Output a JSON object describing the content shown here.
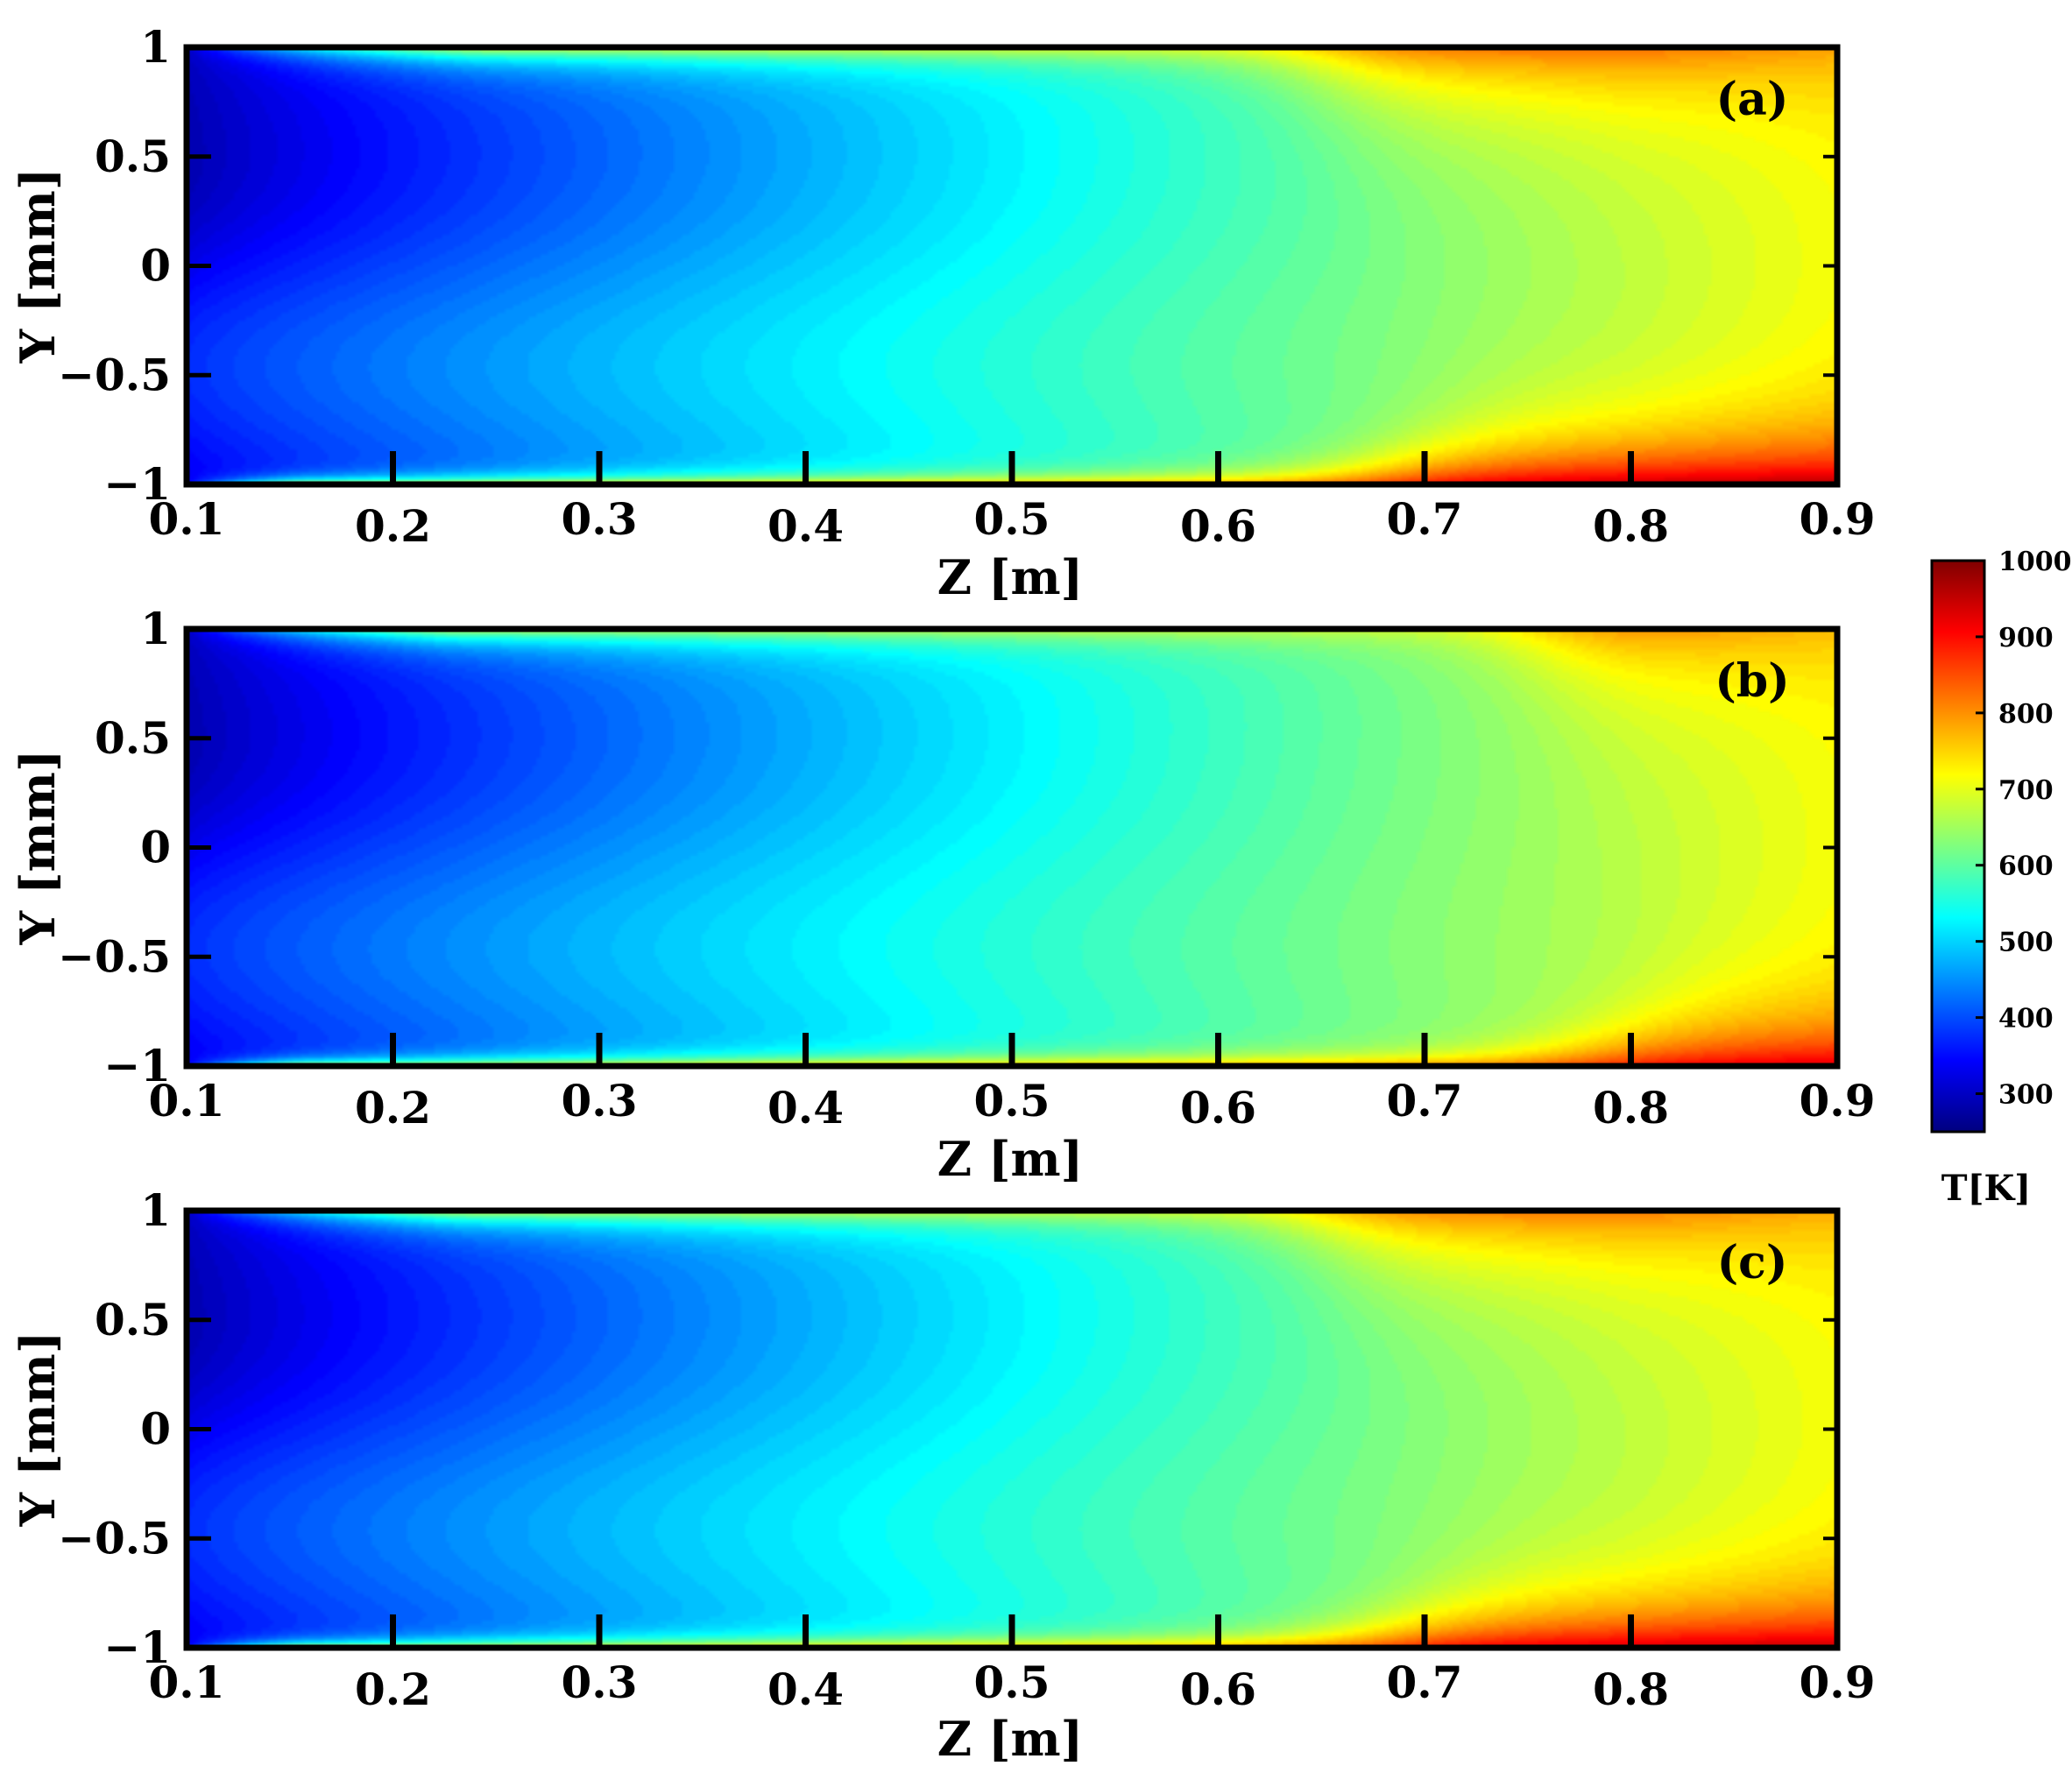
{
  "chart_data": [
    {
      "type": "heatmap",
      "panel_label": "(a)",
      "xlabel": "Z [m]",
      "ylabel": "Y [mm]",
      "xlim": [
        0.1,
        0.9
      ],
      "ylim": [
        -1,
        1
      ],
      "xticks": [
        "0.1",
        "0.2",
        "0.3",
        "0.4",
        "0.5",
        "0.6",
        "0.7",
        "0.8",
        "0.9"
      ],
      "yticks": [
        "1",
        "0.5",
        "0",
        "−0.5",
        "−1"
      ],
      "hot_zone_start_z": 0.6,
      "upper_wall_peak_T": 810,
      "lower_wall_peak_T": 930
    },
    {
      "type": "heatmap",
      "panel_label": "(b)",
      "xlabel": "Z [m]",
      "ylabel": "Y [mm]",
      "xlim": [
        0.1,
        0.9
      ],
      "ylim": [
        -1,
        1
      ],
      "xticks": [
        "0.1",
        "0.2",
        "0.3",
        "0.4",
        "0.5",
        "0.6",
        "0.7",
        "0.8",
        "0.9"
      ],
      "yticks": [
        "1",
        "0.5",
        "0",
        "−0.5",
        "−1"
      ],
      "hot_zone_start_z": 0.7,
      "upper_wall_peak_T": 790,
      "lower_wall_peak_T": 900
    },
    {
      "type": "heatmap",
      "panel_label": "(c)",
      "xlabel": "Z [m]",
      "ylabel": "Y [mm]",
      "xlim": [
        0.1,
        0.9
      ],
      "ylim": [
        -1,
        1
      ],
      "xticks": [
        "0.1",
        "0.2",
        "0.3",
        "0.4",
        "0.5",
        "0.6",
        "0.7",
        "0.8",
        "0.9"
      ],
      "yticks": [
        "1",
        "0.5",
        "0",
        "−0.5",
        "−1"
      ],
      "hot_zone_start_z": 0.6,
      "upper_wall_peak_T": 800,
      "lower_wall_peak_T": 920
    }
  ],
  "colorbar": {
    "title": "T[K]",
    "range": [
      250,
      1000
    ],
    "ticks": [
      "1000",
      "900",
      "800",
      "700",
      "600",
      "500",
      "400",
      "300"
    ],
    "colormap": "jet",
    "colors": [
      "#00007f",
      "#0000ff",
      "#007fff",
      "#00ffff",
      "#7fff7f",
      "#ffff00",
      "#ff7f00",
      "#ff0000",
      "#7f0000"
    ]
  }
}
